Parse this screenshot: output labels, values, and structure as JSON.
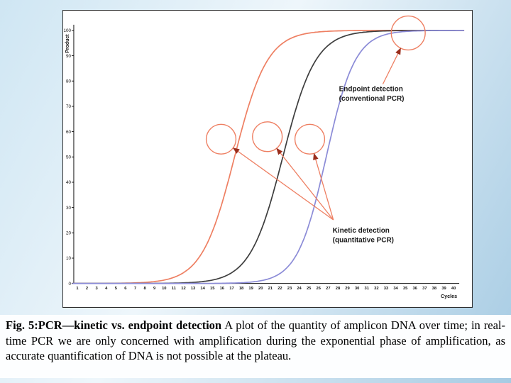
{
  "caption": {
    "bold": "Fig. 5:PCR—kinetic vs. endpoint detection",
    "body": " A plot of the quantity of amplicon DNA over time; in real-time PCR we are only concerned with amplification during the exponential phase of amplification, as accurate quantification of DNA is not possible at the plateau."
  },
  "chart_data": {
    "type": "line",
    "title": "",
    "xlabel": "Cycles",
    "ylabel": "Product",
    "xlim": [
      0,
      41
    ],
    "ylim": [
      0,
      100
    ],
    "grid": false,
    "x_ticks": [
      1,
      2,
      3,
      4,
      5,
      6,
      7,
      8,
      9,
      10,
      11,
      12,
      13,
      14,
      15,
      16,
      17,
      18,
      19,
      20,
      21,
      22,
      23,
      24,
      25,
      26,
      27,
      28,
      29,
      30,
      31,
      32,
      33,
      34,
      35,
      36,
      37,
      38,
      39,
      40
    ],
    "y_ticks": [
      0,
      10,
      20,
      30,
      40,
      50,
      60,
      70,
      80,
      90,
      100
    ],
    "series": [
      {
        "name": "fast-amplification-orange",
        "color": "#ee7f62",
        "sigmoid": {
          "midpoint": 17.3,
          "rate": 1.7,
          "max": 100
        },
        "values": [
          0,
          0,
          0,
          0,
          0.1,
          0.1,
          0.2,
          0.4,
          0.8,
          1.4,
          2.4,
          4.2,
          7.4,
          12.6,
          20.6,
          31.8,
          45.6,
          60.2,
          73.1,
          83.1,
          89.8,
          94,
          96.6,
          98,
          98.9,
          99.4,
          99.7,
          99.8,
          99.9,
          100,
          100,
          100,
          100,
          100,
          100,
          100,
          100,
          100,
          100,
          100
        ]
      },
      {
        "name": "medium-amplification-black",
        "color": "#3d3d3d",
        "sigmoid": {
          "midpoint": 22.3,
          "rate": 1.7,
          "max": 100
        },
        "values": [
          0,
          0,
          0,
          0,
          0,
          0,
          0,
          0,
          0,
          0.1,
          0.1,
          0.2,
          0.4,
          0.8,
          1.4,
          2.4,
          4.2,
          7.4,
          12.6,
          20.6,
          31.8,
          45.6,
          60.2,
          73.1,
          83.1,
          89.8,
          94,
          96.6,
          98,
          98.9,
          99.4,
          99.7,
          99.8,
          99.9,
          100,
          100,
          100,
          100,
          100,
          100
        ]
      },
      {
        "name": "slow-amplification-blue",
        "color": "#8b8bd7",
        "sigmoid": {
          "midpoint": 26.8,
          "rate": 1.5,
          "max": 100
        },
        "values": [
          0,
          0,
          0,
          0,
          0,
          0,
          0,
          0,
          0,
          0,
          0,
          0,
          0,
          0,
          0,
          0.1,
          0.1,
          0.3,
          0.5,
          1.1,
          2,
          3.9,
          7.4,
          13.4,
          23.1,
          36.9,
          53.3,
          69,
          81.3,
          89.4,
          94.3,
          97,
          98.4,
          99.2,
          99.6,
          99.8,
          99.9,
          100,
          100,
          100
        ]
      }
    ],
    "annotations": {
      "accent_color": "#ee7f62",
      "arrowhead_color": "#9a2d1c",
      "endpoint": {
        "label_lines": [
          "Endpoint detection",
          "(conventional PCR)"
        ],
        "circle": {
          "cycle": 35.3,
          "value": 99,
          "radius_px": 24
        }
      },
      "kinetic": {
        "label_lines": [
          "Kinetic detection",
          "(quantitative PCR)"
        ],
        "circles": [
          {
            "cycle": 15.9,
            "value": 57,
            "radius_px": 21
          },
          {
            "cycle": 20.7,
            "value": 58,
            "radius_px": 21
          },
          {
            "cycle": 25.1,
            "value": 57,
            "radius_px": 21
          }
        ]
      }
    }
  }
}
